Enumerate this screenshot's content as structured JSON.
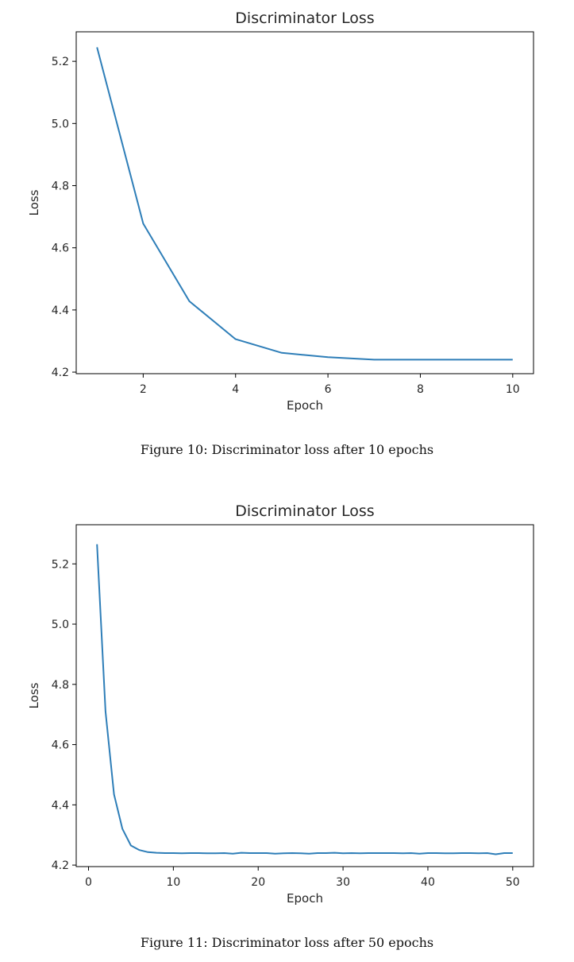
{
  "chart_data": [
    {
      "type": "line",
      "title": "Discriminator Loss",
      "xlabel": "Epoch",
      "ylabel": "Loss",
      "xlim": [
        0.55,
        10.45
      ],
      "ylim": [
        4.195,
        5.295
      ],
      "xticks": [
        2,
        4,
        6,
        8,
        10
      ],
      "xtick_labels": [
        "2",
        "4",
        "6",
        "8",
        "10"
      ],
      "yticks": [
        4.2,
        4.4,
        4.6,
        4.8,
        5.0,
        5.2
      ],
      "ytick_labels": [
        "4.2",
        "4.4",
        "4.6",
        "4.8",
        "5.0",
        "5.2"
      ],
      "grid": false,
      "line_color": "#2e7eb8",
      "series": [
        {
          "x": [
            1,
            2,
            3,
            4,
            5,
            6,
            7,
            8,
            9,
            10
          ],
          "values": [
            5.245,
            4.678,
            4.428,
            4.306,
            4.262,
            4.248,
            4.24,
            4.24,
            4.24,
            4.24
          ]
        }
      ],
      "caption": "Figure 10: Discriminator loss after 10 epochs"
    },
    {
      "type": "line",
      "title": "Discriminator Loss",
      "xlabel": "Epoch",
      "ylabel": "Loss",
      "xlim": [
        -1.45,
        52.45
      ],
      "ylim": [
        4.195,
        5.33
      ],
      "xticks": [
        0,
        10,
        20,
        30,
        40,
        50
      ],
      "xtick_labels": [
        "0",
        "10",
        "20",
        "30",
        "40",
        "50"
      ],
      "yticks": [
        4.2,
        4.4,
        4.6,
        4.8,
        5.0,
        5.2
      ],
      "ytick_labels": [
        "4.2",
        "4.4",
        "4.6",
        "4.8",
        "5.0",
        "5.2"
      ],
      "grid": false,
      "line_color": "#2e7eb8",
      "series": [
        {
          "x": [
            1,
            2,
            3,
            4,
            5,
            6,
            7,
            8,
            9,
            10,
            11,
            12,
            13,
            14,
            15,
            16,
            17,
            18,
            19,
            20,
            21,
            22,
            23,
            24,
            25,
            26,
            27,
            28,
            29,
            30,
            31,
            32,
            33,
            34,
            35,
            36,
            37,
            38,
            39,
            40,
            41,
            42,
            43,
            44,
            45,
            46,
            47,
            48,
            49,
            50
          ],
          "values": [
            5.265,
            4.71,
            4.435,
            4.32,
            4.265,
            4.25,
            4.243,
            4.241,
            4.24,
            4.24,
            4.239,
            4.24,
            4.24,
            4.239,
            4.239,
            4.24,
            4.238,
            4.241,
            4.24,
            4.24,
            4.24,
            4.238,
            4.239,
            4.24,
            4.239,
            4.238,
            4.24,
            4.24,
            4.241,
            4.239,
            4.24,
            4.239,
            4.24,
            4.24,
            4.24,
            4.24,
            4.239,
            4.24,
            4.238,
            4.24,
            4.24,
            4.239,
            4.239,
            4.24,
            4.24,
            4.239,
            4.24,
            4.236,
            4.24,
            4.24
          ]
        }
      ],
      "caption": "Figure 11: Discriminator loss after 50 epochs"
    }
  ]
}
